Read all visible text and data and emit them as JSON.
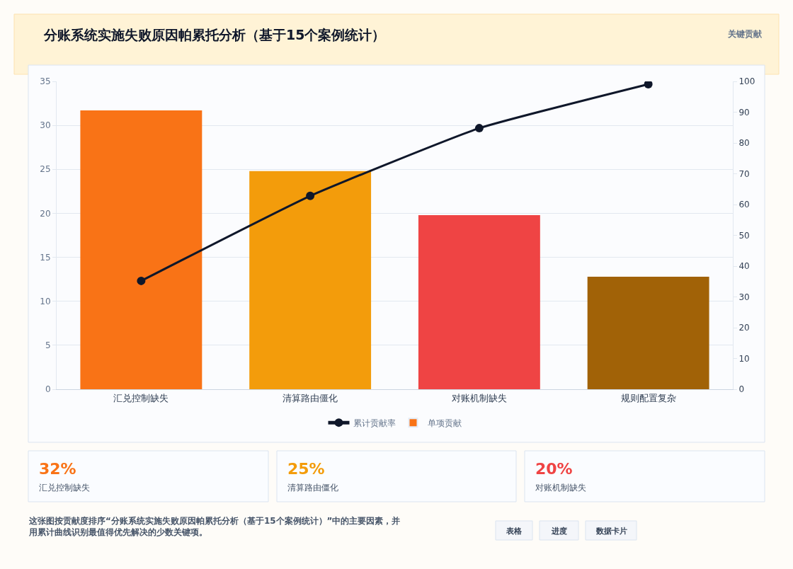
{
  "chart_data": {
    "type": "bar",
    "title": "分账系统实施失败原因帕累托分析（基于15个案例统计）",
    "categories": [
      "汇兑控制缺失",
      "清算路由僵化",
      "对账机制缺失",
      "规则配置复杂"
    ],
    "series": [
      {
        "name": "累计贡献率",
        "type": "line",
        "axis": "y2",
        "color": "#0f172a",
        "values": [
          35.2,
          62.8,
          84.8,
          99.1
        ]
      },
      {
        "name": "单项贡献",
        "color": "#f97316",
        "colors": [
          "#f97316",
          "#f39c0b",
          "#ef4444",
          "#a16207"
        ],
        "values": [
          31.7,
          24.8,
          19.8,
          12.8
        ]
      }
    ],
    "ylim": [
      0,
      35
    ],
    "yticks": [
      0,
      5,
      10,
      15,
      20,
      25,
      30,
      35
    ],
    "y2lim": [
      0,
      100
    ],
    "y2ticks": [
      0,
      10,
      20,
      30,
      40,
      50,
      60,
      70,
      80,
      90,
      100
    ],
    "grid": "y",
    "legend": "bottom",
    "marker": "circle",
    "annotations": [
      "关键贡献",
      "32%",
      "汇兑控制缺失",
      "25%",
      "清算路由僵化",
      "20%",
      "对账机制缺失",
      "这张图按贡献度排序“分账系统实施失败原因帕累托分析（基于15个案例统计）”中的主要因素，并用累计曲线识别最值得优先解决的少数关键项。",
      "表格",
      "进度",
      "数据卡片"
    ]
  }
}
